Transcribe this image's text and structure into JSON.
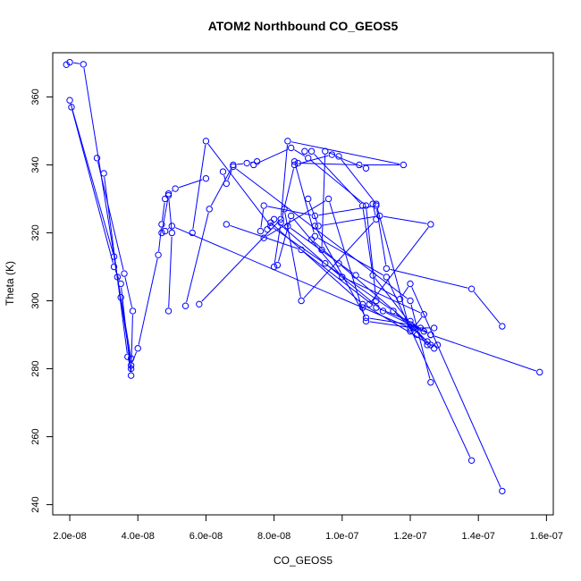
{
  "chart_data": {
    "type": "line",
    "title": "ATOM2 Northbound CO_GEOS5",
    "xlabel": "CO_GEOS5",
    "ylabel": "Theta (K)",
    "xlim": [
      1.5e-08,
      1.62e-07
    ],
    "ylim": [
      237,
      373
    ],
    "x_ticks": [
      2e-08,
      4e-08,
      6e-08,
      8e-08,
      1e-07,
      1.2e-07,
      1.4e-07,
      1.6e-07
    ],
    "x_tick_labels": [
      "2.0e-08",
      "4.0e-08",
      "6.0e-08",
      "8.0e-08",
      "1.0e-07",
      "1.2e-07",
      "1.4e-07",
      "1.6e-07"
    ],
    "y_ticks": [
      240,
      260,
      280,
      300,
      320,
      340,
      360
    ],
    "y_tick_labels": [
      "240",
      "260",
      "280",
      "300",
      "320",
      "340",
      "360"
    ],
    "grid": false,
    "style": {
      "color": "#0000ff",
      "marker": "open-circle"
    },
    "series": [
      {
        "points": [
          [
            1.9e-08,
            369.5
          ],
          [
            2e-08,
            370.2
          ],
          [
            2.4e-08,
            369.6
          ],
          [
            3.4e-08,
            307.0
          ],
          [
            3.5e-08,
            301.0
          ],
          [
            3.8e-08,
            283.0
          ]
        ]
      },
      {
        "points": [
          [
            2e-08,
            359.0
          ],
          [
            3.3e-08,
            313.0
          ],
          [
            3.8e-08,
            281.0
          ],
          [
            4e-08,
            286.0
          ],
          [
            4.6e-08,
            313.5
          ],
          [
            4.7e-08,
            322.5
          ],
          [
            4.8e-08,
            330.0
          ],
          [
            4.9e-08,
            331.5
          ],
          [
            5.1e-08,
            333.0
          ],
          [
            6e-08,
            336.0
          ]
        ]
      },
      {
        "points": [
          [
            2.05e-08,
            357.0
          ],
          [
            3.3e-08,
            310.0
          ],
          [
            3.5e-08,
            305.0
          ],
          [
            3.8e-08,
            278.0
          ],
          [
            3.85e-08,
            297.0
          ],
          [
            3.6e-08,
            308.0
          ],
          [
            2.8e-08,
            342.0
          ]
        ]
      },
      {
        "points": [
          [
            3e-08,
            337.5
          ],
          [
            3.7e-08,
            283.5
          ],
          [
            3.8e-08,
            280.0
          ]
        ]
      },
      {
        "points": [
          [
            4.8e-08,
            320.5
          ],
          [
            5e-08,
            322.0
          ],
          [
            1.2e-07,
            292.0
          ],
          [
            1.27e-07,
            292.0
          ]
        ]
      },
      {
        "points": [
          [
            4.9e-08,
            297.0
          ],
          [
            5e-08,
            320.0
          ],
          [
            4.9e-08,
            331.0
          ],
          [
            4.7e-08,
            320.0
          ]
        ]
      },
      {
        "points": [
          [
            5.4e-08,
            298.5
          ],
          [
            6.1e-08,
            327.0
          ],
          [
            6.8e-08,
            340.0
          ],
          [
            7.2e-08,
            340.5
          ],
          [
            7.5e-08,
            341.0
          ]
        ]
      },
      {
        "points": [
          [
            5.6e-08,
            320.0
          ],
          [
            6e-08,
            347.0
          ],
          [
            7.9e-08,
            322.0
          ],
          [
            1.15e-07,
            297.0
          ],
          [
            1.25e-07,
            288.0
          ]
        ]
      },
      {
        "points": [
          [
            5.8e-08,
            299.0
          ],
          [
            8.2e-08,
            324.0
          ],
          [
            8.4e-08,
            347.0
          ],
          [
            1.18e-07,
            340.0
          ],
          [
            1.05e-07,
            340.0
          ],
          [
            8.7e-08,
            340.5
          ]
        ]
      },
      {
        "points": [
          [
            6.5e-08,
            338.0
          ],
          [
            6.6e-08,
            334.5
          ],
          [
            6.8e-08,
            339.5
          ],
          [
            1.2e-07,
            300.0
          ],
          [
            1.26e-07,
            276.0
          ]
        ]
      },
      {
        "points": [
          [
            6.6e-08,
            322.5
          ],
          [
            8.8e-08,
            315.0
          ],
          [
            1.1e-07,
            298.0
          ],
          [
            1.2e-07,
            294.0
          ],
          [
            1.24e-07,
            291.0
          ]
        ]
      },
      {
        "points": [
          [
            7.4e-08,
            340.0
          ],
          [
            8.5e-08,
            345.0
          ],
          [
            9e-08,
            342.0
          ],
          [
            1.07e-07,
            328.0
          ],
          [
            1.1e-07,
            300.0
          ]
        ]
      },
      {
        "points": [
          [
            7.6e-08,
            320.5
          ],
          [
            7.7e-08,
            328.0
          ],
          [
            9.2e-08,
            325.0
          ],
          [
            1.1e-07,
            328.0
          ],
          [
            1.13e-07,
            309.5
          ],
          [
            1.38e-07,
            303.5
          ],
          [
            1.47e-07,
            292.5
          ]
        ]
      },
      {
        "points": [
          [
            7.7e-08,
            318.5
          ],
          [
            9.6e-08,
            330.0
          ],
          [
            1.07e-07,
            294.0
          ],
          [
            1.21e-07,
            292.0
          ],
          [
            1.27e-07,
            286.0
          ]
        ]
      },
      {
        "points": [
          [
            7.8e-08,
            321.0
          ],
          [
            8e-08,
            324.0
          ],
          [
            9.5e-08,
            311.0
          ],
          [
            1.12e-07,
            297.0
          ],
          [
            1.26e-07,
            290.0
          ]
        ]
      },
      {
        "points": [
          [
            7.9e-08,
            323.0
          ],
          [
            1.06e-07,
            299.0
          ],
          [
            1.26e-07,
            287.0
          ]
        ]
      },
      {
        "points": [
          [
            8e-08,
            310.0
          ],
          [
            8.2e-08,
            323.0
          ],
          [
            8.6e-08,
            340.0
          ],
          [
            9.7e-08,
            343.0
          ],
          [
            1.07e-07,
            339.0
          ]
        ]
      },
      {
        "points": [
          [
            8.1e-08,
            310.5
          ],
          [
            8.5e-08,
            325.0
          ],
          [
            1e-07,
            307.0
          ],
          [
            1.24e-07,
            296.0
          ],
          [
            1.21e-07,
            292.0
          ]
        ]
      },
      {
        "points": [
          [
            8.3e-08,
            327.0
          ],
          [
            8.8e-08,
            300.0
          ],
          [
            1.1e-07,
            324.0
          ],
          [
            1.09e-07,
            328.5
          ]
        ]
      },
      {
        "points": [
          [
            8.4e-08,
            322.0
          ],
          [
            1.04e-07,
            307.5
          ],
          [
            1.17e-07,
            300.5
          ],
          [
            1.2e-07,
            305.0
          ],
          [
            1.47e-07,
            244.0
          ]
        ]
      },
      {
        "points": [
          [
            8.6e-08,
            341.0
          ],
          [
            9.2e-08,
            319.0
          ],
          [
            1.13e-07,
            307.0
          ],
          [
            1.38e-07,
            253.0
          ]
        ]
      },
      {
        "points": [
          [
            8.9e-08,
            344.0
          ],
          [
            9.1e-08,
            344.0
          ],
          [
            1.06e-07,
            328.0
          ],
          [
            1.09e-07,
            307.5
          ],
          [
            1.25e-07,
            287.0
          ],
          [
            1.28e-07,
            287.0
          ]
        ]
      },
      {
        "points": [
          [
            9e-08,
            330.0
          ],
          [
            9.3e-08,
            322.0
          ],
          [
            1.11e-07,
            325.0
          ],
          [
            1.26e-07,
            322.5
          ],
          [
            1.08e-07,
            299.0
          ],
          [
            1.06e-07,
            298.0
          ]
        ]
      },
      {
        "points": [
          [
            9.4e-08,
            315.0
          ],
          [
            9.5e-08,
            344.0
          ],
          [
            9.9e-08,
            342.5
          ],
          [
            1.1e-07,
            328.5
          ],
          [
            1.2e-07,
            291.0
          ],
          [
            1.22e-07,
            290.0
          ]
        ]
      },
      {
        "points": [
          [
            9.2e-08,
            322.0
          ],
          [
            1.07e-07,
            295.0
          ],
          [
            1.2e-07,
            293.0
          ],
          [
            1.23e-07,
            292.0
          ],
          [
            1.26e-07,
            290.0
          ],
          [
            1.58e-07,
            279.0
          ]
        ]
      },
      {
        "points": [
          [
            9.1e-08,
            318.0
          ],
          [
            9.9e-08,
            311.0
          ],
          [
            1.2e-07,
            293.0
          ]
        ]
      }
    ]
  }
}
